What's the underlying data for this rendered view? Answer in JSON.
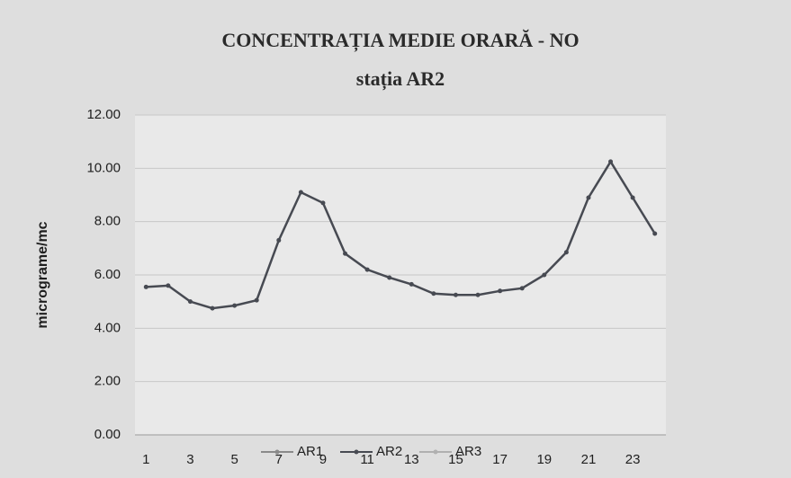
{
  "chart_data": {
    "type": "line",
    "title": "CONCENTRAȚIA MEDIE ORARĂ - NO",
    "subtitle": "stația AR2",
    "y_label": "micrograme/mc",
    "categories": [
      1,
      null,
      3,
      null,
      5,
      null,
      7,
      null,
      9,
      null,
      11,
      null,
      13,
      null,
      15,
      null,
      17,
      null,
      19,
      null,
      21,
      null,
      23,
      null
    ],
    "series": [
      {
        "name": "AR1",
        "color": "#8a8a8a",
        "values": [
          null,
          null,
          null,
          null,
          null,
          null,
          null,
          null,
          null,
          null,
          null,
          null,
          null,
          null,
          null,
          null,
          null,
          null,
          null,
          null,
          null,
          null,
          null,
          null
        ]
      },
      {
        "name": "AR2",
        "color": "#474a52",
        "values": [
          5.55,
          5.6,
          5.0,
          4.75,
          4.85,
          5.05,
          7.3,
          9.1,
          8.7,
          6.8,
          6.2,
          5.9,
          5.65,
          5.3,
          5.25,
          5.25,
          5.4,
          5.5,
          6.0,
          6.85,
          8.9,
          10.25,
          8.9,
          7.55
        ]
      },
      {
        "name": "AR3",
        "color": "#b0b0b0",
        "values": [
          null,
          null,
          null,
          null,
          null,
          null,
          null,
          null,
          null,
          null,
          null,
          null,
          null,
          null,
          null,
          null,
          null,
          null,
          null,
          null,
          null,
          null,
          null,
          null
        ]
      }
    ],
    "ylim": [
      0,
      12
    ],
    "yticks": [
      {
        "value": 0,
        "label": "0.00"
      },
      {
        "value": 2,
        "label": "2.00"
      },
      {
        "value": 4,
        "label": "4.00"
      },
      {
        "value": 6,
        "label": "6.00"
      },
      {
        "value": 8,
        "label": "8.00"
      },
      {
        "value": 10,
        "label": "10.00"
      },
      {
        "value": 12,
        "label": "12.00"
      }
    ],
    "grid": true,
    "legend": "bottom"
  }
}
